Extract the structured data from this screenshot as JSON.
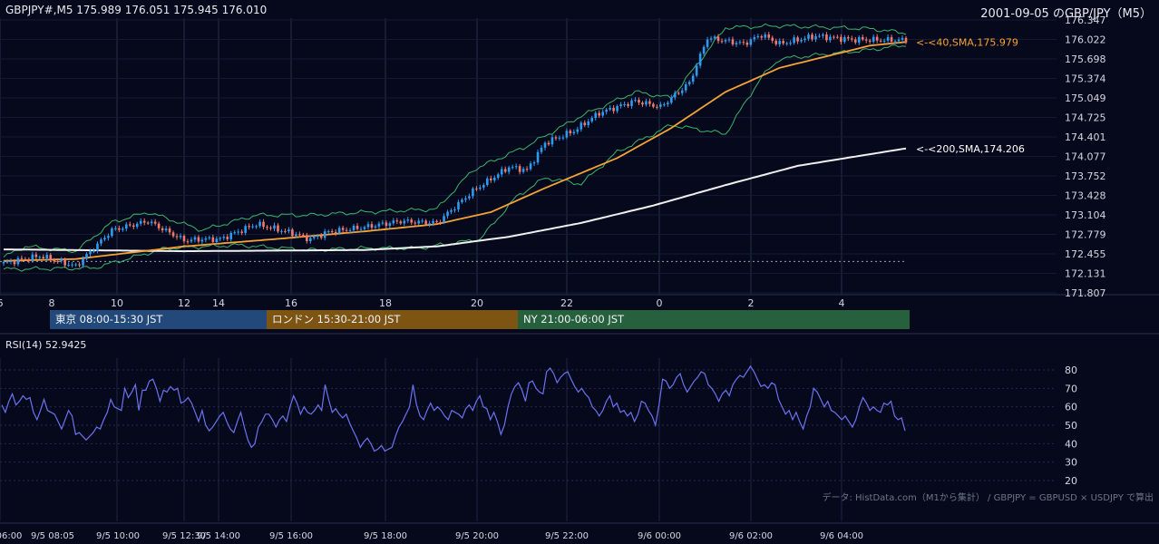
{
  "header": {
    "ohlc": "GBPJPY#,M5 175.989 176.051 175.945 176.010",
    "title": "2001-09-05 のGBP/JPY（M5）"
  },
  "sessions": [
    {
      "label": "東京 08:00-15:30 JST",
      "color": "#22497a"
    },
    {
      "label": "ロンドン 15:30-21:00 JST",
      "color": "#7d5412"
    },
    {
      "label": "NY 21:00-06:00 JST",
      "color": "#26603c"
    }
  ],
  "rsi": {
    "label": "RSI(14) 52.9425"
  },
  "credit": "データ: HistData.com（M1から集計） / GBPJPY = GBPUSD × USDJPY で算出",
  "colors": {
    "up": "#2e9bf0",
    "down": "#f07a6e",
    "sma40": "#f5a236",
    "sma200": "#f0f0f0",
    "band": "#3cb56a",
    "rsi": "#6b72f0"
  },
  "chart_data": [
    {
      "type": "candlestick",
      "y_ticks": [
        "176.347",
        "176.022",
        "175.698",
        "175.374",
        "175.049",
        "174.725",
        "174.401",
        "174.077",
        "173.752",
        "173.428",
        "173.104",
        "172.779",
        "172.455",
        "172.131",
        "171.807"
      ],
      "ylim": [
        171.807,
        176.347
      ],
      "x_ticks": [
        "6",
        "8",
        "10",
        "12",
        "14",
        "16",
        "18",
        "20",
        "22",
        "0",
        "2",
        "4"
      ],
      "x_bottom_ticks": [
        "06:00",
        "9/5 08:05",
        "9/5 10:00",
        "9/5 12:30",
        "9/5 14:00",
        "9/5 16:00",
        "9/5 18:00",
        "9/5 20:00",
        "9/5 22:00",
        "9/6 00:00",
        "9/6 02:00",
        "9/6 04:00"
      ],
      "reference_line": 172.33,
      "annotations": [
        {
          "label": "<-<40,SMA,175.979",
          "value": 175.979,
          "color": "#f5a236"
        },
        {
          "label": "<-<200,SMA,174.206",
          "value": 174.206,
          "color": "#ffffff"
        }
      ],
      "series": [
        {
          "name": "SMA 40",
          "anchors": [
            [
              0,
              172.34
            ],
            [
              20,
              172.37
            ],
            [
              50,
              172.58
            ],
            [
              75,
              172.7
            ],
            [
              100,
              172.83
            ],
            [
              120,
              172.95
            ],
            [
              135,
              173.15
            ],
            [
              150,
              173.55
            ],
            [
              170,
              174.05
            ],
            [
              185,
              174.55
            ],
            [
              200,
              175.15
            ],
            [
              215,
              175.55
            ],
            [
              240,
              175.92
            ],
            [
              250,
              175.98
            ]
          ]
        },
        {
          "name": "SMA 200",
          "anchors": [
            [
              0,
              172.53
            ],
            [
              50,
              172.5
            ],
            [
              100,
              172.52
            ],
            [
              120,
              172.58
            ],
            [
              140,
              172.74
            ],
            [
              160,
              172.97
            ],
            [
              180,
              173.26
            ],
            [
              200,
              173.6
            ],
            [
              220,
              173.92
            ],
            [
              250,
              174.21
            ]
          ]
        },
        {
          "name": "Bollinger upper",
          "anchors": [
            [
              0,
              172.4
            ],
            [
              6,
              172.58
            ],
            [
              20,
              172.5
            ],
            [
              30,
              172.98
            ],
            [
              40,
              173.15
            ],
            [
              55,
              172.85
            ],
            [
              70,
              173.1
            ],
            [
              85,
              173.1
            ],
            [
              100,
              173.15
            ],
            [
              120,
              173.2
            ],
            [
              130,
              173.85
            ],
            [
              145,
              174.25
            ],
            [
              160,
              174.75
            ],
            [
              175,
              175.15
            ],
            [
              185,
              175.05
            ],
            [
              200,
              176.22
            ],
            [
              215,
              176.25
            ],
            [
              240,
              176.2
            ],
            [
              250,
              176.13
            ]
          ]
        },
        {
          "name": "Bollinger lower",
          "anchors": [
            [
              0,
              172.2
            ],
            [
              25,
              172.22
            ],
            [
              45,
              172.55
            ],
            [
              65,
              172.6
            ],
            [
              85,
              172.52
            ],
            [
              100,
              172.55
            ],
            [
              115,
              172.55
            ],
            [
              132,
              172.7
            ],
            [
              142,
              173.4
            ],
            [
              150,
              173.72
            ],
            [
              160,
              173.62
            ],
            [
              170,
              174.15
            ],
            [
              185,
              174.6
            ],
            [
              200,
              174.45
            ],
            [
              210,
              175.4
            ],
            [
              215,
              175.7
            ],
            [
              240,
              175.85
            ],
            [
              250,
              175.93
            ]
          ]
        },
        {
          "name": "Close",
          "anchors": [
            [
              0,
              172.3
            ],
            [
              10,
              172.42
            ],
            [
              20,
              172.25
            ],
            [
              30,
              172.85
            ],
            [
              40,
              173.0
            ],
            [
              50,
              172.68
            ],
            [
              55,
              172.7
            ],
            [
              60,
              172.7
            ],
            [
              70,
              172.95
            ],
            [
              80,
              172.8
            ],
            [
              85,
              172.7
            ],
            [
              90,
              172.82
            ],
            [
              100,
              172.9
            ],
            [
              110,
              173.0
            ],
            [
              120,
              172.97
            ],
            [
              130,
              173.5
            ],
            [
              140,
              173.9
            ],
            [
              145,
              173.85
            ],
            [
              150,
              174.3
            ],
            [
              158,
              174.5
            ],
            [
              165,
              174.8
            ],
            [
              175,
              175.0
            ],
            [
              182,
              174.9
            ],
            [
              190,
              175.3
            ],
            [
              195,
              176.05
            ],
            [
              205,
              175.95
            ],
            [
              210,
              176.1
            ],
            [
              215,
              175.95
            ],
            [
              225,
              176.08
            ],
            [
              235,
              176.02
            ],
            [
              250,
              176.01
            ]
          ]
        }
      ]
    },
    {
      "type": "line",
      "name": "RSI(14)",
      "y_ticks": [
        "80",
        "70",
        "60",
        "50",
        "40",
        "30",
        "20"
      ],
      "ylim": [
        20,
        80
      ],
      "values": [
        61,
        57,
        63,
        67,
        61,
        63,
        66,
        64,
        65,
        57,
        53,
        58,
        64,
        58,
        57,
        56,
        52,
        48,
        53,
        58,
        55,
        45,
        46,
        44,
        42,
        44,
        46,
        49,
        48,
        53,
        57,
        64,
        60,
        59,
        58,
        70,
        65,
        68,
        72,
        58,
        69,
        69,
        74,
        75,
        70,
        63,
        69,
        68,
        71,
        69,
        70,
        62,
        63,
        65,
        62,
        57,
        52,
        58,
        50,
        47,
        49,
        52,
        55,
        57,
        52,
        48,
        46,
        52,
        57,
        49,
        42,
        38,
        40,
        49,
        52,
        56,
        56,
        53,
        49,
        53,
        55,
        52,
        60,
        66,
        62,
        56,
        60,
        57,
        56,
        58,
        61,
        58,
        72,
        64,
        57,
        59,
        56,
        54,
        56,
        51,
        47,
        43,
        38,
        41,
        43,
        40,
        36,
        37,
        39,
        36,
        37,
        38,
        44,
        49,
        52,
        56,
        60,
        72,
        61,
        55,
        53,
        58,
        62,
        58,
        60,
        58,
        55,
        53,
        58,
        57,
        56,
        54,
        59,
        61,
        58,
        63,
        66,
        60,
        59,
        53,
        57,
        52,
        45,
        50,
        60,
        67,
        71,
        73,
        69,
        63,
        73,
        74,
        70,
        68,
        67,
        79,
        81,
        78,
        73,
        76,
        78,
        79,
        75,
        71,
        68,
        70,
        67,
        65,
        60,
        58,
        55,
        58,
        63,
        66,
        60,
        62,
        57,
        58,
        55,
        57,
        52,
        56,
        63,
        62,
        58,
        55,
        50,
        61,
        75,
        74,
        70,
        72,
        76,
        78,
        72,
        68,
        71,
        74,
        76,
        79,
        78,
        72,
        70,
        67,
        63,
        67,
        69,
        66,
        72,
        75,
        77,
        76,
        79,
        82,
        79,
        75,
        71,
        72,
        70,
        73,
        72,
        64,
        60,
        56,
        58,
        53,
        57,
        52,
        48,
        55,
        60,
        70,
        68,
        64,
        60,
        63,
        58,
        57,
        55,
        53,
        55,
        52,
        49,
        53,
        60,
        65,
        62,
        58,
        60,
        58,
        57,
        62,
        61,
        63,
        55,
        53,
        54,
        47
      ]
    }
  ]
}
